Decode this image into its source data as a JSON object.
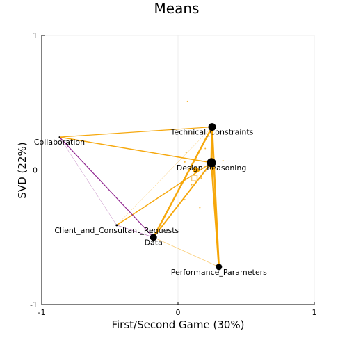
{
  "chart_data": {
    "type": "scatter",
    "title": "Means",
    "xlabel": "First/Second Game (30%)",
    "ylabel": "SVD (22%)",
    "xlim": [
      -1,
      1
    ],
    "ylim": [
      -1,
      1
    ],
    "xticks": [
      "-1",
      "0",
      "1"
    ],
    "yticks": [
      "-1",
      "0",
      "1"
    ],
    "grid": true,
    "legend": "none",
    "colors": {
      "orange": "#f5a300",
      "purple": "#8a1a8a",
      "node": "#000000"
    },
    "nodes": [
      {
        "label": "Technical_Constraints",
        "x": 0.25,
        "y": 0.32,
        "size": 11
      },
      {
        "label": "Collaboration",
        "x": -0.87,
        "y": 0.245,
        "size": 2
      },
      {
        "label": "Design_Reasoning",
        "x": 0.245,
        "y": 0.055,
        "size": 13
      },
      {
        "label": "Client_and_Consultant_Requests",
        "x": -0.45,
        "y": -0.41,
        "size": 3
      },
      {
        "label": "Data",
        "x": -0.18,
        "y": -0.5,
        "size": 10
      },
      {
        "label": "Performance_Parameters",
        "x": 0.3,
        "y": -0.72,
        "size": 9
      }
    ],
    "edges": [
      {
        "from": "Technical_Constraints",
        "to": "Design_Reasoning",
        "color": "orange",
        "weight": 3
      },
      {
        "from": "Technical_Constraints",
        "to": "Performance_Parameters",
        "color": "orange",
        "weight": 2.5
      },
      {
        "from": "Technical_Constraints",
        "to": "Data",
        "color": "orange",
        "weight": 2.5
      },
      {
        "from": "Technical_Constraints",
        "to": "Collaboration",
        "color": "orange",
        "weight": 1.2
      },
      {
        "from": "Technical_Constraints",
        "to": "Client_and_Consultant_Requests",
        "color": "orange",
        "weight": 0.5
      },
      {
        "from": "Design_Reasoning",
        "to": "Collaboration",
        "color": "orange",
        "weight": 1.5
      },
      {
        "from": "Design_Reasoning",
        "to": "Data",
        "color": "orange",
        "weight": 2
      },
      {
        "from": "Design_Reasoning",
        "to": "Performance_Parameters",
        "color": "orange",
        "weight": 2.5
      },
      {
        "from": "Design_Reasoning",
        "to": "Client_and_Consultant_Requests",
        "color": "orange",
        "weight": 1.5
      },
      {
        "from": "Data",
        "to": "Performance_Parameters",
        "color": "orange",
        "weight": 0.8
      },
      {
        "from": "Data",
        "to": "Collaboration",
        "color": "purple",
        "weight": 1.2
      },
      {
        "from": "Data",
        "to": "Client_and_Consultant_Requests",
        "color": "purple",
        "weight": 0.8
      },
      {
        "from": "Collaboration",
        "to": "Client_and_Consultant_Requests",
        "color": "purple",
        "weight": 0.5
      }
    ],
    "centroids": [
      {
        "x": 0.12,
        "y": -0.06,
        "shape": "square",
        "color": "#f5c878"
      },
      {
        "x": 0.13,
        "y": 0.0,
        "shape": "circle",
        "color": "#f5a300"
      }
    ],
    "points": [
      {
        "x": 0.07,
        "y": 0.51
      },
      {
        "x": 0.1,
        "y": 0.27
      },
      {
        "x": 0.06,
        "y": 0.13
      },
      {
        "x": 0.05,
        "y": 0.06
      },
      {
        "x": 0.17,
        "y": -0.06
      },
      {
        "x": 0.1,
        "y": -0.11
      },
      {
        "x": 0.05,
        "y": -0.22
      },
      {
        "x": 0.16,
        "y": -0.28
      },
      {
        "x": 0.33,
        "y": 0.07
      },
      {
        "x": 0.12,
        "y": 0.08
      },
      {
        "x": 0.2,
        "y": 0.16
      }
    ]
  }
}
